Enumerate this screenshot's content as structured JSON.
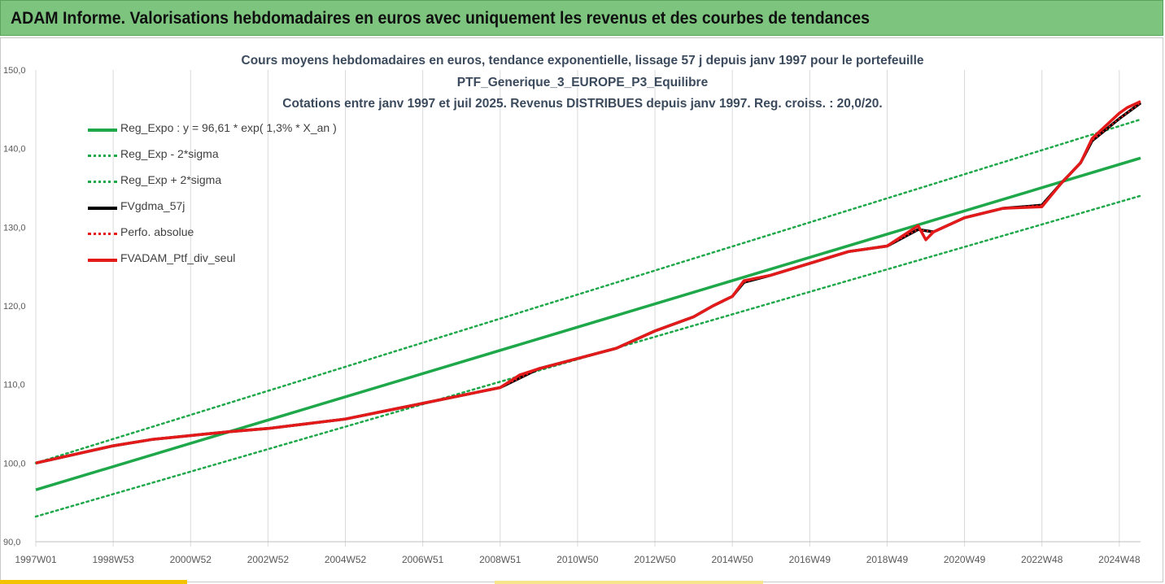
{
  "header": {
    "title": "ADAM Informe. Valorisations hebdomadaires en euros avec uniquement les revenus et des courbes de tendances"
  },
  "chart_data": {
    "type": "line",
    "title_lines": [
      "Cours moyens hebdomadaires  en euros, tendance exponentielle, lissage 57 j depuis janv 1997 pour le portefeuille",
      "PTF_Generique_3_EUROPE_P3_Equilibre",
      "Cotations  entre janv 1997 et juil 2025. Revenus DISTRIBUES depuis janv 1997. Reg. croiss. : 20,0/20."
    ],
    "ylim": [
      90,
      150
    ],
    "y_ticks": [
      "150,0",
      "140,0",
      "130,0",
      "120,0",
      "110,0",
      "100,0",
      "90,0"
    ],
    "y_tick_values": [
      150,
      140,
      130,
      120,
      110,
      100,
      90
    ],
    "x_ticks": [
      "1997W01",
      "1998W53",
      "2000W52",
      "2002W52",
      "2004W52",
      "2006W51",
      "2008W51",
      "2010W50",
      "2012W50",
      "2014W50",
      "2016W49",
      "2018W49",
      "2020W49",
      "2022W48",
      "2024W48"
    ],
    "x_tick_positions_years": [
      1997.0,
      1999.0,
      2001.0,
      2003.0,
      2005.0,
      2007.0,
      2009.0,
      2011.0,
      2013.0,
      2015.0,
      2017.0,
      2019.0,
      2021.0,
      2023.0,
      2025.0
    ],
    "xlim_years": [
      1997.0,
      2025.55
    ],
    "grid": "vertical-lines",
    "legend_position": "top-left",
    "colors": {
      "green": "#1fa84a",
      "red": "#e41a1a",
      "black": "#000000"
    },
    "series": [
      {
        "name": "Reg_Expo : y = 96,61 * exp( 1,3% *  X_an )",
        "style": "solid-green",
        "x": [
          1997.0,
          2025.55
        ],
        "y": [
          96.6,
          138.8
        ]
      },
      {
        "name": "Reg_Exp - 2*sigma",
        "style": "dotted-green",
        "x": [
          1997.0,
          2025.55
        ],
        "y": [
          93.2,
          134.0
        ]
      },
      {
        "name": "Reg_Exp + 2*sigma",
        "style": "dotted-green",
        "x": [
          1997.0,
          2025.55
        ],
        "y": [
          100.0,
          143.7
        ]
      },
      {
        "name": "FVgdma_57j",
        "style": "solid-black",
        "x": [
          1997.0,
          1998.0,
          1999.0,
          2000.0,
          2001.0,
          2002.0,
          2003.0,
          2004.0,
          2005.0,
          2006.0,
          2007.0,
          2008.0,
          2009.0,
          2009.5,
          2010.0,
          2011.0,
          2012.0,
          2013.0,
          2014.0,
          2014.5,
          2015.0,
          2015.3,
          2016.0,
          2017.0,
          2018.0,
          2019.0,
          2019.8,
          2020.2,
          2021.0,
          2022.0,
          2023.0,
          2023.5,
          2024.0,
          2024.3,
          2025.0,
          2025.55
        ],
        "y": [
          100.0,
          101.1,
          102.2,
          103.0,
          103.5,
          104.0,
          104.4,
          105.0,
          105.6,
          106.6,
          107.6,
          108.6,
          109.6,
          110.8,
          112.0,
          113.3,
          114.6,
          116.8,
          118.6,
          120.0,
          121.2,
          123.0,
          123.9,
          125.4,
          126.9,
          127.6,
          129.7,
          129.4,
          131.2,
          132.4,
          132.8,
          135.6,
          138.2,
          141.0,
          143.8,
          145.8
        ]
      },
      {
        "name": "Perfo. absolue",
        "style": "dotted-red",
        "x": [
          1997.0,
          1998.0,
          1999.0,
          2000.0,
          2001.0,
          2002.0,
          2003.0,
          2004.0,
          2005.0,
          2006.0,
          2007.0,
          2008.0,
          2009.0,
          2009.5,
          2010.0,
          2011.0,
          2012.0,
          2013.0,
          2014.0,
          2014.5,
          2015.0,
          2015.3,
          2016.0,
          2017.0,
          2018.0,
          2019.0,
          2019.8,
          2020.2,
          2021.0,
          2022.0,
          2023.0,
          2023.5,
          2024.0,
          2024.3,
          2025.0,
          2025.55
        ],
        "y": [
          100.0,
          101.1,
          102.2,
          103.0,
          103.5,
          104.0,
          104.4,
          105.0,
          105.6,
          106.6,
          107.6,
          108.6,
          109.6,
          110.8,
          112.0,
          113.3,
          114.6,
          116.8,
          118.6,
          120.0,
          121.2,
          123.0,
          123.9,
          125.4,
          126.9,
          127.6,
          129.7,
          129.4,
          131.2,
          132.4,
          132.8,
          135.6,
          138.2,
          141.0,
          143.8,
          145.8
        ]
      },
      {
        "name": "FVADAM_Ptf_div_seul",
        "style": "solid-red",
        "x": [
          1997.0,
          1998.0,
          1999.0,
          2000.0,
          2001.0,
          2002.0,
          2003.0,
          2004.0,
          2005.0,
          2006.0,
          2007.0,
          2008.0,
          2009.0,
          2009.5,
          2010.0,
          2011.0,
          2012.0,
          2013.0,
          2014.0,
          2014.5,
          2015.0,
          2015.3,
          2016.0,
          2017.0,
          2018.0,
          2019.0,
          2019.8,
          2020.0,
          2020.2,
          2021.0,
          2022.0,
          2023.0,
          2023.5,
          2024.0,
          2024.3,
          2025.0,
          2025.2,
          2025.55
        ],
        "y": [
          100.0,
          101.1,
          102.2,
          103.0,
          103.5,
          104.0,
          104.4,
          105.0,
          105.6,
          106.6,
          107.6,
          108.6,
          109.6,
          111.2,
          112.0,
          113.3,
          114.6,
          116.8,
          118.6,
          120.0,
          121.2,
          123.2,
          123.9,
          125.4,
          126.9,
          127.6,
          130.2,
          128.4,
          129.4,
          131.2,
          132.4,
          132.6,
          135.6,
          138.2,
          141.3,
          144.5,
          145.2,
          146.0
        ]
      }
    ]
  }
}
